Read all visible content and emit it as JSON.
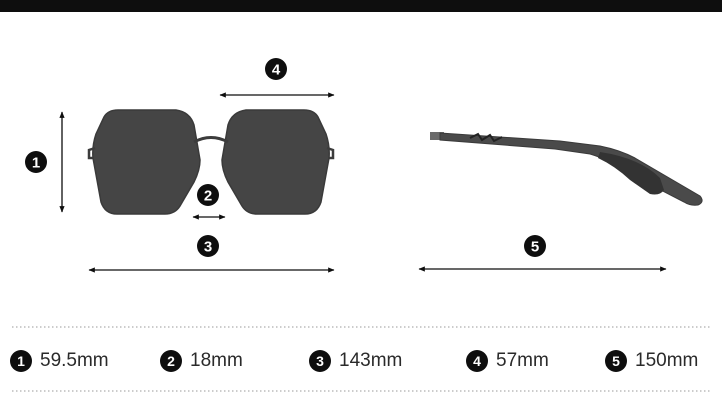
{
  "colors": {
    "ink": "#0e0e0e",
    "lens": "#444444",
    "frame": "#555555",
    "dots": "#9a9a9a"
  },
  "markers": {
    "m1": "1",
    "m2": "2",
    "m3": "3",
    "m4": "4",
    "m5": "5"
  },
  "legend": [
    {
      "number": "1",
      "value": "59.5mm"
    },
    {
      "number": "2",
      "value": "18mm"
    },
    {
      "number": "3",
      "value": "143mm"
    },
    {
      "number": "4",
      "value": "57mm"
    },
    {
      "number": "5",
      "value": "150mm"
    }
  ]
}
